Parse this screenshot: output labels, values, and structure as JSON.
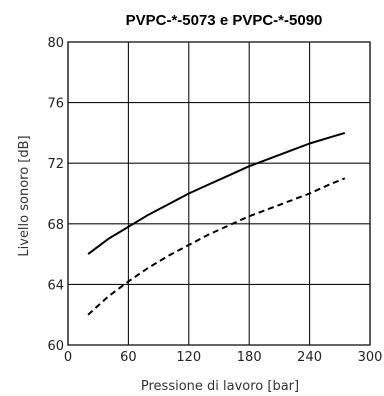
{
  "chart_data": {
    "type": "line",
    "title": "PVPC-*-5073 e PVPC-*-5090",
    "xlabel": "Pressione di lavoro [bar]",
    "ylabel": "Livello sonoro [dB]",
    "xlim": [
      0,
      300
    ],
    "ylim": [
      60,
      80
    ],
    "x_ticks": [
      0,
      60,
      120,
      180,
      240,
      300
    ],
    "y_ticks": [
      60,
      64,
      68,
      72,
      76,
      80
    ],
    "x_tick_labels": [
      "0",
      "60",
      "120",
      "180",
      "240",
      "300"
    ],
    "y_tick_labels": [
      "60",
      "64",
      "68",
      "72",
      "76",
      "80"
    ],
    "grid": true,
    "series": [
      {
        "style": "solid",
        "color": "#000000",
        "x": [
          20,
          40,
          60,
          80,
          100,
          120,
          140,
          160,
          180,
          200,
          220,
          240,
          260,
          275
        ],
        "y": [
          66.0,
          67.0,
          67.8,
          68.6,
          69.3,
          70.0,
          70.6,
          71.2,
          71.8,
          72.3,
          72.8,
          73.3,
          73.7,
          74.0
        ]
      },
      {
        "style": "dashed",
        "color": "#000000",
        "x": [
          20,
          40,
          60,
          80,
          100,
          120,
          140,
          160,
          180,
          200,
          220,
          240,
          260,
          275
        ],
        "y": [
          62.0,
          63.2,
          64.2,
          65.1,
          65.9,
          66.6,
          67.3,
          67.9,
          68.5,
          69.0,
          69.5,
          70.0,
          70.6,
          71.0
        ]
      }
    ]
  }
}
